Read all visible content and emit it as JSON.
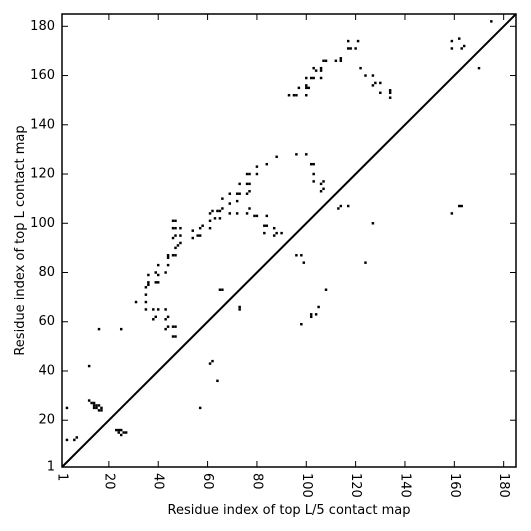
{
  "chart_data": {
    "type": "scatter",
    "title": "",
    "xlabel": "Residue index of top L/5 contact map",
    "ylabel": "Residue index of top L contact map",
    "xlim": [
      1,
      185
    ],
    "ylim": [
      1,
      185
    ],
    "xticks": [
      1,
      20,
      40,
      60,
      80,
      100,
      120,
      140,
      160,
      180
    ],
    "yticks": [
      1,
      20,
      40,
      60,
      80,
      100,
      120,
      140,
      160,
      180
    ],
    "xtick_rotation_deg": -90,
    "grid": false,
    "legend": "none",
    "marker_color": "#000000",
    "line_color": "#000000",
    "diagonal": true,
    "upper_triangle_points": [
      [
        12,
        42
      ],
      [
        16,
        57
      ],
      [
        25,
        57
      ],
      [
        31,
        68
      ],
      [
        35,
        65
      ],
      [
        35,
        68
      ],
      [
        35,
        71
      ],
      [
        35,
        74
      ],
      [
        36,
        75
      ],
      [
        36,
        76
      ],
      [
        36,
        79
      ],
      [
        38,
        61
      ],
      [
        39,
        62
      ],
      [
        38,
        65
      ],
      [
        40,
        65
      ],
      [
        39,
        76
      ],
      [
        40,
        76
      ],
      [
        39,
        80
      ],
      [
        40,
        79
      ],
      [
        40,
        83
      ],
      [
        43,
        57
      ],
      [
        44,
        58
      ],
      [
        43,
        61
      ],
      [
        44,
        62
      ],
      [
        43,
        65
      ],
      [
        43,
        80
      ],
      [
        44,
        83
      ],
      [
        44,
        86
      ],
      [
        44,
        87
      ],
      [
        46,
        58
      ],
      [
        47,
        58
      ],
      [
        46,
        54
      ],
      [
        47,
        54
      ],
      [
        46,
        87
      ],
      [
        47,
        87
      ],
      [
        47,
        90
      ],
      [
        48,
        91
      ],
      [
        46,
        94
      ],
      [
        47,
        95
      ],
      [
        46,
        98
      ],
      [
        47,
        98
      ],
      [
        46,
        101
      ],
      [
        47,
        101
      ],
      [
        49,
        92
      ],
      [
        49,
        95
      ],
      [
        49,
        98
      ],
      [
        54,
        94
      ],
      [
        54,
        97
      ],
      [
        56,
        95
      ],
      [
        57,
        95
      ],
      [
        57,
        98
      ],
      [
        58,
        99
      ],
      [
        61,
        98
      ],
      [
        61,
        101
      ],
      [
        61,
        104
      ],
      [
        63,
        102
      ],
      [
        62,
        105
      ],
      [
        65,
        102
      ],
      [
        65,
        105
      ],
      [
        66,
        106
      ],
      [
        66,
        110
      ],
      [
        64,
        105
      ],
      [
        69,
        104
      ],
      [
        69,
        108
      ],
      [
        69,
        112
      ],
      [
        72,
        104
      ],
      [
        72,
        109
      ],
      [
        72,
        112
      ],
      [
        73,
        112
      ],
      [
        73,
        116
      ],
      [
        76,
        104
      ],
      [
        77,
        106
      ],
      [
        76,
        112
      ],
      [
        77,
        113
      ],
      [
        76,
        116
      ],
      [
        77,
        116
      ],
      [
        76,
        120
      ],
      [
        77,
        120
      ],
      [
        79,
        103
      ],
      [
        80,
        103
      ],
      [
        80,
        120
      ],
      [
        80,
        123
      ],
      [
        83,
        99
      ],
      [
        84,
        99
      ],
      [
        84,
        103
      ],
      [
        83,
        96
      ],
      [
        84,
        124
      ],
      [
        87,
        95
      ],
      [
        87,
        98
      ],
      [
        88,
        96
      ],
      [
        90,
        96
      ],
      [
        88,
        127
      ],
      [
        93,
        152
      ],
      [
        95,
        152
      ],
      [
        96,
        87
      ],
      [
        96,
        128
      ],
      [
        96,
        152
      ],
      [
        97,
        155
      ],
      [
        98,
        87
      ],
      [
        99,
        84
      ],
      [
        100,
        128
      ],
      [
        100,
        152
      ],
      [
        100,
        155
      ],
      [
        100,
        156
      ],
      [
        100,
        159
      ],
      [
        101,
        155
      ],
      [
        102,
        124
      ],
      [
        103,
        117
      ],
      [
        103,
        120
      ],
      [
        103,
        124
      ],
      [
        102,
        159
      ],
      [
        103,
        159
      ],
      [
        103,
        163
      ],
      [
        104,
        162
      ],
      [
        106,
        113
      ],
      [
        106,
        116
      ],
      [
        107,
        117
      ],
      [
        107,
        114
      ],
      [
        106,
        159
      ],
      [
        106,
        162
      ],
      [
        106,
        163
      ],
      [
        107,
        166
      ],
      [
        108,
        166
      ],
      [
        112,
        166
      ],
      [
        114,
        166
      ],
      [
        114,
        167
      ],
      [
        117,
        171
      ],
      [
        117,
        174
      ],
      [
        118,
        171
      ],
      [
        120,
        171
      ],
      [
        121,
        174
      ],
      [
        122,
        163
      ],
      [
        124,
        160
      ],
      [
        127,
        160
      ],
      [
        127,
        156
      ],
      [
        128,
        157
      ],
      [
        130,
        153
      ],
      [
        130,
        157
      ],
      [
        134,
        153
      ],
      [
        134,
        154
      ],
      [
        134,
        151
      ],
      [
        159,
        171
      ],
      [
        159,
        174
      ],
      [
        162,
        175
      ],
      [
        163,
        171
      ],
      [
        164,
        172
      ],
      [
        170,
        163
      ],
      [
        175,
        182
      ]
    ],
    "lower_triangle_points": [
      [
        3,
        12
      ],
      [
        3,
        25
      ],
      [
        6,
        12
      ],
      [
        7,
        13
      ],
      [
        12,
        28
      ],
      [
        13,
        27
      ],
      [
        14,
        26
      ],
      [
        14,
        25
      ],
      [
        15,
        26
      ],
      [
        15,
        25
      ],
      [
        16,
        24
      ],
      [
        16,
        26
      ],
      [
        17,
        24
      ],
      [
        17,
        25
      ],
      [
        14,
        27
      ],
      [
        23,
        16
      ],
      [
        24,
        16
      ],
      [
        24,
        15
      ],
      [
        25,
        14
      ],
      [
        25,
        16
      ],
      [
        26,
        15
      ],
      [
        27,
        15
      ],
      [
        57,
        25
      ],
      [
        61,
        43
      ],
      [
        62,
        44
      ],
      [
        64,
        36
      ],
      [
        65,
        73
      ],
      [
        66,
        73
      ],
      [
        73,
        65
      ],
      [
        73,
        66
      ],
      [
        98,
        59
      ],
      [
        102,
        62
      ],
      [
        102,
        63
      ],
      [
        104,
        63
      ],
      [
        105,
        66
      ],
      [
        108,
        73
      ],
      [
        113,
        106
      ],
      [
        114,
        107
      ],
      [
        117,
        107
      ],
      [
        124,
        84
      ],
      [
        127,
        100
      ],
      [
        159,
        104
      ],
      [
        162,
        107
      ],
      [
        163,
        107
      ]
    ]
  }
}
